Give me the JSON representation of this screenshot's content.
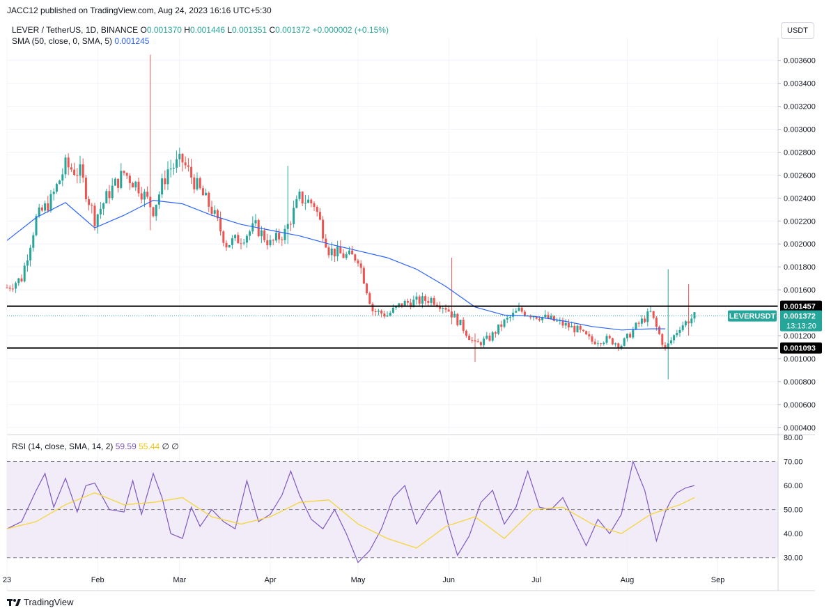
{
  "header": {
    "credit": "JACC12 published on TradingView.com, Aug 24, 2023 16:16 UTC+5:30",
    "symbol": "LEVER / TetherUS, 1D, BINANCE",
    "o_label": "O",
    "o_value": "0.001370",
    "h_label": "H",
    "h_value": "0.001446",
    "l_label": "L",
    "l_value": "0.001351",
    "c_label": "C",
    "c_value": "0.001372",
    "change": "+0.000002 (+0.15%)",
    "sma_label": "SMA (50, close, 0, SMA, 5)",
    "sma_value": "0.001245",
    "rsi_label": "RSI (14, close, SMA, 14, 2)",
    "rsi_value": "59.59",
    "rsi_ma_value": "55.44",
    "rsi_extra": "∅ ∅",
    "currency": "USDT"
  },
  "footer": {
    "brand": "TradingView"
  },
  "colors": {
    "up": "#26a69a",
    "down": "#ef5350",
    "sma": "#2962ff",
    "rsi": "#7e57c2",
    "rsi_ma": "#f5d63a",
    "rsi_band": "#ede7f6"
  },
  "chart_data": [
    {
      "type": "candlestick",
      "title": "LEVER / TetherUS, 1D, BINANCE",
      "y_axis_labels": [
        "0.003600",
        "0.003400",
        "0.003200",
        "0.003000",
        "0.002800",
        "0.002600",
        "0.002400",
        "0.002200",
        "0.002000",
        "0.001800",
        "0.001600",
        "0.001200",
        "0.001000",
        "0.000800",
        "0.000600",
        "0.000400"
      ],
      "ylim": [
        0.00035,
        0.00375
      ],
      "x_axis_labels": [
        "23",
        "Feb",
        "Mar",
        "Apr",
        "May",
        "Jun",
        "Jul",
        "Aug",
        "Sep"
      ],
      "x_label_days": [
        0,
        31,
        59,
        90,
        120,
        151,
        181,
        212,
        243
      ],
      "horizontal_lines": [
        {
          "label": "0.001457",
          "value": 0.001457
        },
        {
          "label": "0.001093",
          "value": 0.001093
        }
      ],
      "price_marker": {
        "symbol": "LEVERUSDT",
        "value": "0.001372",
        "countdown": "13:13:20",
        "level": 0.001372
      },
      "close_series": {
        "days": [
          0,
          5,
          10,
          15,
          20,
          25,
          30,
          35,
          40,
          45,
          50,
          55,
          60,
          65,
          70,
          75,
          80,
          85,
          90,
          95,
          100,
          105,
          110,
          115,
          120,
          125,
          130,
          135,
          140,
          145,
          150,
          155,
          160,
          165,
          170,
          175,
          180,
          185,
          190,
          195,
          200,
          205,
          210,
          215,
          220,
          225,
          230,
          235
        ],
        "values": [
          0.00162,
          0.0017,
          0.00222,
          0.00238,
          0.00268,
          0.00262,
          0.00222,
          0.00245,
          0.00262,
          0.0025,
          0.0023,
          0.00265,
          0.00272,
          0.0025,
          0.0023,
          0.002,
          0.00205,
          0.00215,
          0.002,
          0.0021,
          0.0024,
          0.00235,
          0.00195,
          0.0019,
          0.00188,
          0.00142,
          0.00138,
          0.00148,
          0.0015,
          0.00152,
          0.00145,
          0.0013,
          0.00112,
          0.00118,
          0.00132,
          0.00142,
          0.00138,
          0.00135,
          0.0013,
          0.00125,
          0.00115,
          0.00117,
          0.00112,
          0.00128,
          0.0014,
          0.00108,
          0.00128,
          0.00137
        ]
      },
      "spikes": [
        {
          "day": 49,
          "high": 0.00365,
          "low": 0.00212
        },
        {
          "day": 96,
          "high": 0.00268,
          "low": 0.002
        },
        {
          "day": 152,
          "high": 0.00188,
          "low": 0.0013
        },
        {
          "day": 160,
          "high": 0.00122,
          "low": 0.00097
        },
        {
          "day": 226,
          "high": 0.00178,
          "low": 0.00082
        },
        {
          "day": 233,
          "high": 0.00165,
          "low": 0.0012
        }
      ],
      "sma_series": {
        "name": "SMA (50, close, 0, SMA, 5)",
        "days": [
          0,
          10,
          20,
          30,
          40,
          50,
          60,
          70,
          80,
          90,
          100,
          110,
          120,
          130,
          140,
          150,
          160,
          170,
          180,
          190,
          200,
          210,
          220,
          225
        ],
        "values": [
          0.00203,
          0.00223,
          0.00236,
          0.00214,
          0.00225,
          0.00238,
          0.00235,
          0.00225,
          0.00217,
          0.00212,
          0.00207,
          0.002,
          0.00194,
          0.00188,
          0.00178,
          0.00163,
          0.00145,
          0.00138,
          0.00137,
          0.00133,
          0.00128,
          0.00125,
          0.00126,
          0.00126
        ]
      }
    },
    {
      "type": "line",
      "title": "RSI (14, close, SMA, 14, 2)",
      "y_axis_labels": [
        "80.00",
        "70.00",
        "60.00",
        "50.00",
        "40.00",
        "30.00"
      ],
      "ylim": [
        25,
        80
      ],
      "bands": [
        70,
        50,
        30
      ],
      "series": [
        {
          "name": "RSI",
          "days": [
            0,
            5,
            10,
            13,
            16,
            20,
            24,
            27,
            30,
            35,
            40,
            43,
            46,
            50,
            53,
            56,
            60,
            63,
            66,
            70,
            74,
            78,
            82,
            86,
            90,
            94,
            97,
            100,
            104,
            108,
            112,
            116,
            120,
            124,
            128,
            132,
            136,
            140,
            144,
            148,
            151,
            154,
            158,
            162,
            166,
            170,
            174,
            178,
            182,
            186,
            190,
            194,
            198,
            202,
            206,
            210,
            214,
            218,
            222,
            225,
            227,
            229,
            232,
            235
          ],
          "values": [
            42,
            45,
            58,
            65,
            51,
            63,
            49,
            60,
            61,
            50,
            49,
            62,
            48,
            65,
            55,
            40,
            38,
            51,
            43,
            50,
            45,
            42,
            62,
            45,
            48,
            56,
            66,
            56,
            46,
            42,
            50,
            40,
            28,
            33,
            42,
            55,
            60,
            44,
            52,
            58,
            43,
            31,
            39,
            53,
            58,
            44,
            51,
            66,
            51,
            50,
            55,
            45,
            35,
            46,
            40,
            48,
            70,
            58,
            37,
            49,
            54,
            57,
            59,
            60
          ]
        },
        {
          "name": "RSI SMA",
          "days": [
            0,
            10,
            20,
            30,
            40,
            50,
            60,
            70,
            80,
            90,
            100,
            110,
            120,
            130,
            140,
            150,
            160,
            170,
            180,
            190,
            200,
            210,
            220,
            230,
            235
          ],
          "values": [
            42,
            45,
            52,
            57,
            52,
            53,
            55,
            47,
            44,
            47,
            53,
            54,
            44,
            38,
            34,
            43,
            47,
            38,
            50,
            51,
            44,
            40,
            48,
            52,
            55
          ]
        }
      ]
    }
  ]
}
